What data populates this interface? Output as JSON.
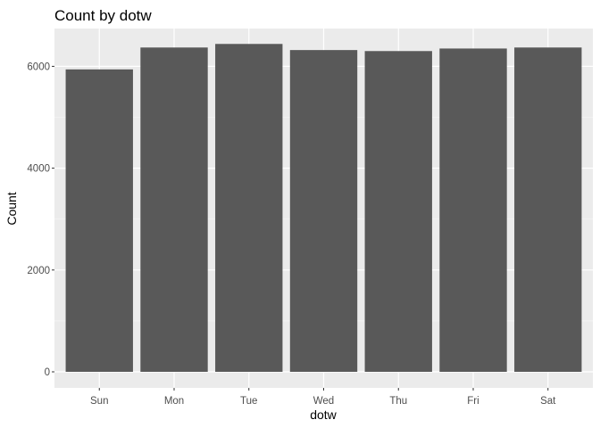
{
  "chart_data": {
    "type": "bar",
    "title": "Count by dotw",
    "xlabel": "dotw",
    "ylabel": "Count",
    "categories": [
      "Sun",
      "Mon",
      "Tue",
      "Wed",
      "Thu",
      "Fri",
      "Sat"
    ],
    "values": [
      5940,
      6370,
      6440,
      6320,
      6300,
      6350,
      6370
    ],
    "ylim": [
      0,
      6650
    ],
    "yticks": [
      0,
      2000,
      4000,
      6000
    ],
    "yticks_minor": [
      1000,
      3000,
      5000
    ],
    "ytick_labels": [
      "0",
      "2000",
      "4000",
      "6000"
    ],
    "grid": true,
    "legend": "none",
    "colors": {
      "panel_bg": "#ebebeb",
      "grid_major": "#ffffff",
      "grid_minor": "#f5f5f5",
      "bar_fill": "#595959",
      "tick_label": "#4d4d4d",
      "tick_mark": "#333333"
    }
  }
}
